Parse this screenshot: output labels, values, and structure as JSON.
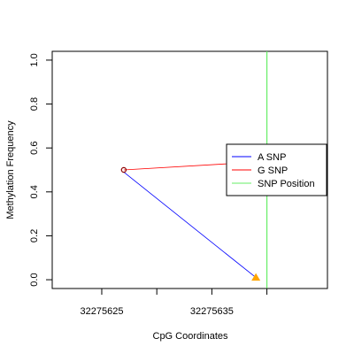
{
  "chart_data": {
    "type": "line",
    "xlabel": "CpG Coordinates",
    "ylabel": "Methylation Frequency",
    "xlim": [
      32275620.5,
      32275645.5
    ],
    "ylim": [
      -0.04,
      1.04
    ],
    "x_ticks": [
      32275625,
      32275630,
      32275635,
      32275640
    ],
    "x_tick_labels": [
      "32275625",
      "",
      "32275635",
      ""
    ],
    "y_ticks": [
      0.0,
      0.2,
      0.4,
      0.6,
      0.8,
      1.0
    ],
    "y_tick_labels": [
      "0.0",
      "0.2",
      "0.4",
      "0.6",
      "0.8",
      "1.0"
    ],
    "series": [
      {
        "name": "A SNP",
        "color": "#0000ff",
        "x": [
          32275627,
          32275639
        ],
        "y": [
          0.49,
          0.01
        ],
        "markers": [
          {
            "x": 32275639,
            "y": 0.01,
            "shape": "triangle",
            "color": "#ffa500"
          }
        ]
      },
      {
        "name": "G SNP",
        "color": "#ff0000",
        "x": [
          32275627,
          32275640.5
        ],
        "y": [
          0.5,
          0.54
        ],
        "markers": [
          {
            "x": 32275627,
            "y": 0.5,
            "shape": "circle-open",
            "color": "#8b0000"
          }
        ]
      }
    ],
    "vlines": [
      {
        "name": "SNP Position",
        "x": 32275640,
        "color": "#66ee66"
      }
    ],
    "legend": {
      "placement": "right",
      "entries": [
        {
          "label": "A SNP",
          "color": "#0000ff"
        },
        {
          "label": "G SNP",
          "color": "#ff0000"
        },
        {
          "label": "SNP Position",
          "color": "#66ee66"
        }
      ]
    },
    "grid": false
  }
}
